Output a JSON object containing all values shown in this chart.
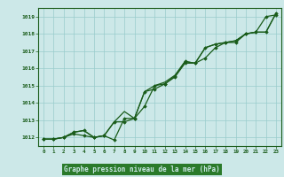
{
  "title": "Graphe pression niveau de la mer (hPa)",
  "xlabel_hours": [
    0,
    1,
    2,
    3,
    4,
    5,
    6,
    7,
    8,
    9,
    10,
    11,
    12,
    13,
    14,
    15,
    16,
    17,
    18,
    19,
    20,
    21,
    22,
    23
  ],
  "ylim": [
    1011.5,
    1019.5
  ],
  "yticks": [
    1012,
    1013,
    1014,
    1015,
    1016,
    1017,
    1018,
    1019
  ],
  "bg_color": "#cce8e8",
  "grid_color": "#99cccc",
  "line_color": "#1a5c1a",
  "marker_color": "#1a5c1a",
  "title_bg": "#2a7a2a",
  "title_fg": "#cce8e8",
  "series1": [
    1011.9,
    1011.9,
    1012.0,
    1012.2,
    1012.1,
    1012.0,
    1012.1,
    1011.85,
    1013.1,
    1013.1,
    1013.8,
    1015.0,
    1015.1,
    1015.5,
    1016.3,
    1016.3,
    1016.6,
    1017.2,
    1017.5,
    1017.5,
    1018.0,
    1018.1,
    1019.0,
    1019.1
  ],
  "series2": [
    1011.9,
    1011.9,
    1012.0,
    1012.3,
    1012.4,
    1012.0,
    1012.1,
    1012.9,
    1012.9,
    1013.1,
    1014.65,
    1014.8,
    1015.1,
    1015.55,
    1016.4,
    1016.3,
    1017.2,
    1017.4,
    1017.5,
    1017.6,
    1018.0,
    1018.1,
    1018.1,
    1019.2
  ],
  "series3": [
    1011.9,
    1011.9,
    1012.0,
    1012.3,
    1012.4,
    1012.0,
    1012.1,
    1012.9,
    1013.5,
    1013.1,
    1014.65,
    1015.0,
    1015.2,
    1015.6,
    1016.4,
    1016.3,
    1017.2,
    1017.4,
    1017.5,
    1017.6,
    1018.0,
    1018.1,
    1018.1,
    1019.2
  ]
}
